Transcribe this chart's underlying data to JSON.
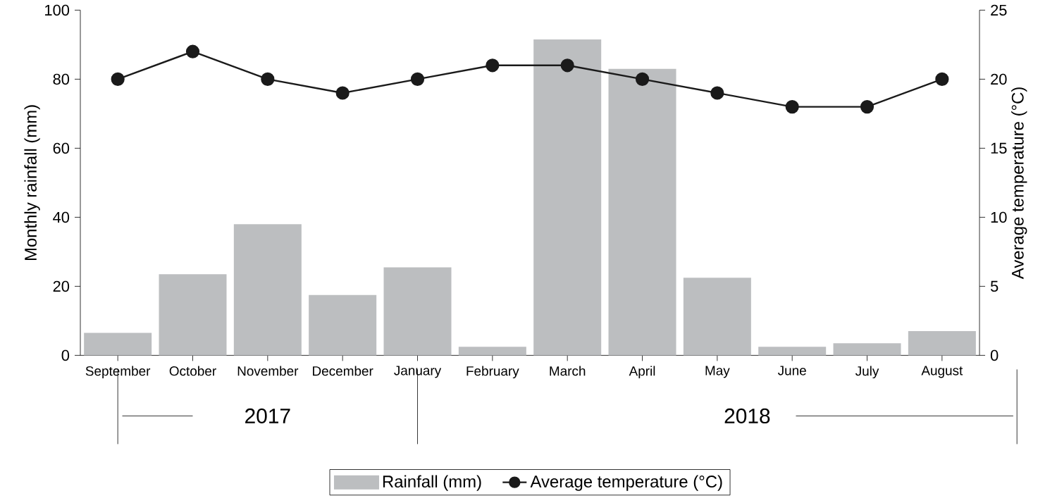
{
  "chart_data": {
    "type": "bar",
    "categories": [
      "September",
      "October",
      "November",
      "December",
      "January",
      "February",
      "March",
      "April",
      "May",
      "June",
      "July",
      "August"
    ],
    "series": [
      {
        "name": "Rainfall (mm)",
        "color": "#bcbec0",
        "values": [
          6.5,
          23.5,
          38,
          17.5,
          25.5,
          2.5,
          91.5,
          83,
          22.5,
          2.5,
          3.5,
          7
        ]
      },
      {
        "name": "Average temperature (°C)",
        "type": "line",
        "axis": "y2",
        "color": "#1a1a1a",
        "marker": "circle",
        "values": [
          20,
          22,
          20,
          19,
          20,
          21,
          21,
          20,
          19,
          18,
          18,
          20
        ]
      }
    ],
    "ylabel": "Monthly rainfall (mm)",
    "y2label": "Average temperature (°C)",
    "ylim": [
      0,
      100
    ],
    "yticks": [
      0,
      20,
      40,
      60,
      80,
      100
    ],
    "y2lim": [
      0,
      25
    ],
    "y2ticks": [
      0,
      5,
      10,
      15,
      20,
      25
    ],
    "annotations": [
      "2017",
      "2018"
    ],
    "legend": "bottom"
  }
}
